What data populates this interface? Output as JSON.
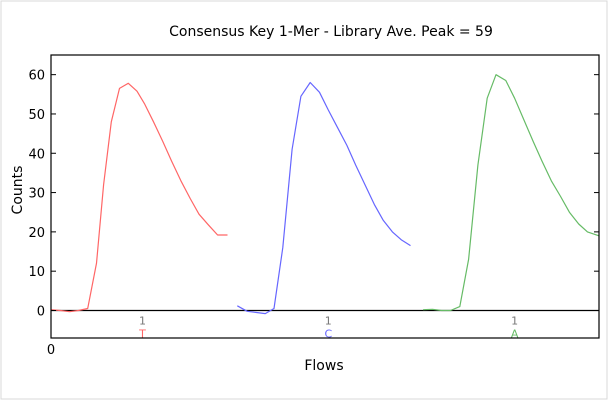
{
  "chart_data": {
    "type": "line",
    "title": "Consensus Key 1-Mer - Library Ave. Peak = 59",
    "xlabel": "Flows",
    "ylabel": "Counts",
    "ylim": [
      -7,
      65
    ],
    "xlim": [
      0,
      1
    ],
    "yticks": [
      0,
      10,
      20,
      30,
      40,
      50,
      60
    ],
    "xticks": [
      0
    ],
    "grid": false,
    "zero_line": true,
    "series": [
      {
        "key": "T",
        "color": "#ff6666",
        "x": [
          0.0,
          0.017,
          0.034,
          0.05,
          0.067,
          0.083,
          0.096,
          0.11,
          0.125,
          0.141,
          0.157,
          0.171,
          0.187,
          0.204,
          0.22,
          0.237,
          0.254,
          0.27,
          0.287,
          0.304,
          0.322
        ],
        "y": [
          0.2,
          0.0,
          -0.3,
          0.0,
          0.5,
          12.0,
          32.0,
          48.0,
          56.5,
          57.8,
          55.8,
          52.5,
          48.0,
          43.0,
          38.0,
          33.0,
          28.5,
          24.5,
          21.8,
          19.2,
          19.2
        ]
      },
      {
        "key": "C",
        "color": "#6666ff",
        "x": [
          0.34,
          0.358,
          0.375,
          0.391,
          0.407,
          0.423,
          0.44,
          0.456,
          0.473,
          0.49,
          0.506,
          0.523,
          0.54,
          0.556,
          0.573,
          0.59,
          0.606,
          0.623,
          0.639,
          0.656
        ],
        "y": [
          1.2,
          -0.2,
          -0.5,
          -0.8,
          0.5,
          16.0,
          41.0,
          54.5,
          58.0,
          55.5,
          51.0,
          46.5,
          42.0,
          37.0,
          32.0,
          27.0,
          23.0,
          20.0,
          18.0,
          16.5
        ]
      },
      {
        "key": "A",
        "color": "#66bb66",
        "x": [
          0.679,
          0.696,
          0.713,
          0.729,
          0.746,
          0.762,
          0.779,
          0.796,
          0.812,
          0.83,
          0.846,
          0.863,
          0.88,
          0.896,
          0.913,
          0.93,
          0.946,
          0.963,
          0.979,
          1.0
        ],
        "y": [
          0.2,
          0.3,
          0.0,
          0.0,
          1.0,
          13.0,
          37.0,
          54.0,
          60.0,
          58.5,
          54.0,
          48.5,
          43.0,
          38.0,
          33.0,
          29.0,
          25.0,
          22.0,
          20.0,
          19.0
        ]
      }
    ],
    "key_labels": [
      {
        "count": "1",
        "base": "T",
        "x": 0.167,
        "color": "#ff6666"
      },
      {
        "count": "1",
        "base": "C",
        "x": 0.506,
        "color": "#6666ff"
      },
      {
        "count": "1",
        "base": "A",
        "x": 0.846,
        "color": "#66bb66"
      }
    ]
  }
}
